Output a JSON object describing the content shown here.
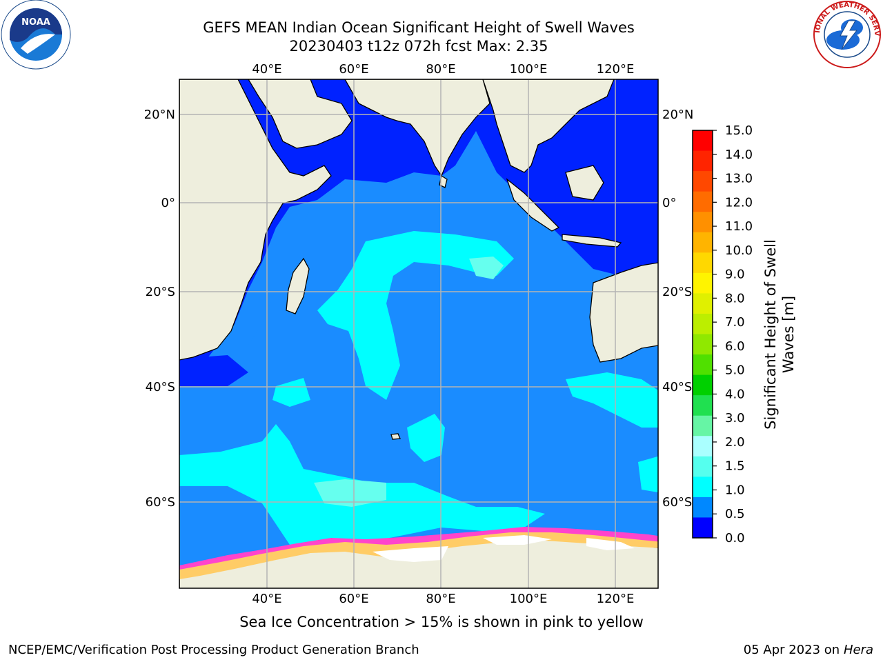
{
  "title_line1": "GEFS MEAN Indian Ocean Significant Height of Swell Waves",
  "title_line2": "20230403 t12z 072h fcst   Max: 2.35",
  "lon_ticks": [
    "40°E",
    "60°E",
    "80°E",
    "100°E",
    "120°E"
  ],
  "lat_ticks": [
    "20°N",
    "0°",
    "20°S",
    "40°S",
    "60°S"
  ],
  "colorbar": {
    "label": "Significant Height of Swell Waves [m]",
    "ticks": [
      "15.0",
      "14.0",
      "13.0",
      "12.0",
      "11.0",
      "10.0",
      "9.0",
      "8.0",
      "7.0",
      "6.0",
      "5.0",
      "4.0",
      "3.0",
      "2.0",
      "1.5",
      "1.0",
      "0.5",
      "0.0"
    ],
    "colors": [
      "#ff0000",
      "#ff2400",
      "#ff4800",
      "#ff6c00",
      "#ff9000",
      "#ffb400",
      "#ffd800",
      "#fff400",
      "#e0f000",
      "#bcee00",
      "#90e800",
      "#50e000",
      "#00d000",
      "#20e050",
      "#66f5a5",
      "#aaffff",
      "#55ffee",
      "#00ffff",
      "#0088ff",
      "#0000ff"
    ]
  },
  "map_colors": {
    "land": "#eeeedd",
    "deep_blue": "#0022ff",
    "mid_blue": "#1a8cff",
    "cyan": "#00ffff",
    "light_cyan": "#66ffee",
    "ice": [
      "#ff44cc",
      "#ff99dd",
      "#ffcc66",
      "#ffee88"
    ]
  },
  "caption": "Sea Ice Concentration > 15% is shown in pink to yellow",
  "footer_left": "NCEP/EMC/Verification Post Processing Product Generation Branch",
  "footer_date": "05 Apr 2023 on ",
  "footer_machine": "Hera",
  "logos": {
    "noaa": "NOAA",
    "nws": "NATIONAL WEATHER SERVICE"
  }
}
